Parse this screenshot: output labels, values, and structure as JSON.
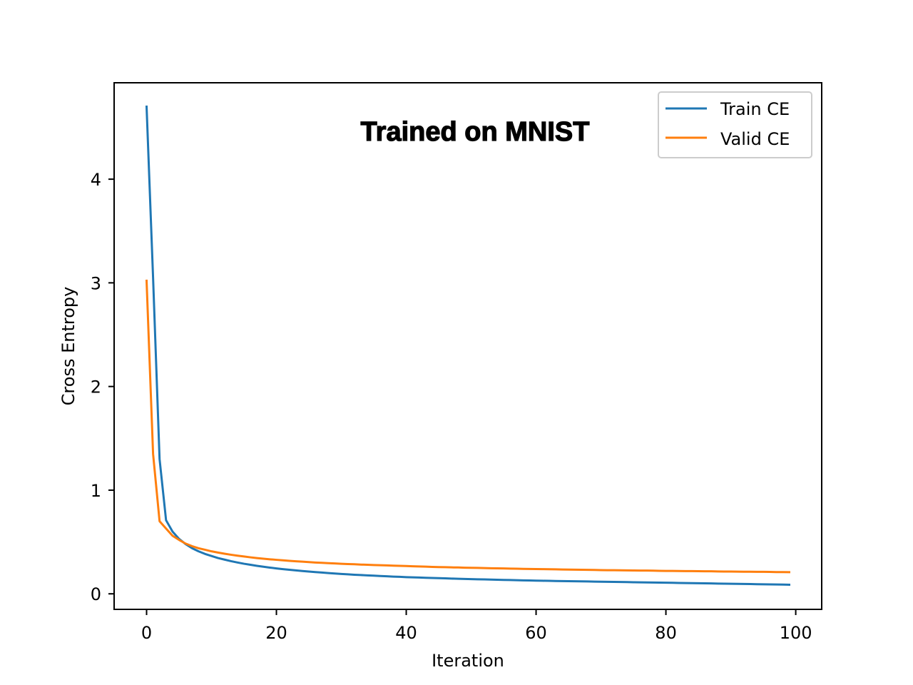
{
  "chart_data": {
    "type": "line",
    "title": "Trained on MNIST",
    "xlabel": "Iteration",
    "ylabel": "Cross Entropy",
    "xlim": [
      -5,
      104
    ],
    "ylim": [
      -0.15,
      4.93
    ],
    "xticks": [
      0,
      20,
      40,
      60,
      80,
      100
    ],
    "yticks": [
      0,
      1,
      2,
      3,
      4
    ],
    "grid": false,
    "legend_position": "top-right",
    "x": [
      0,
      1,
      2,
      3,
      4,
      5,
      6,
      7,
      8,
      9,
      10,
      11,
      12,
      13,
      14,
      15,
      16,
      17,
      18,
      19,
      20,
      21,
      22,
      23,
      24,
      25,
      26,
      27,
      28,
      29,
      30,
      31,
      32,
      33,
      34,
      35,
      36,
      37,
      38,
      39,
      40,
      41,
      42,
      43,
      44,
      45,
      46,
      47,
      48,
      49,
      50,
      51,
      52,
      53,
      54,
      55,
      56,
      57,
      58,
      59,
      60,
      61,
      62,
      63,
      64,
      65,
      66,
      67,
      68,
      69,
      70,
      71,
      72,
      73,
      74,
      75,
      76,
      77,
      78,
      79,
      80,
      81,
      82,
      83,
      84,
      85,
      86,
      87,
      88,
      89,
      90,
      91,
      92,
      93,
      94,
      95,
      96,
      97,
      98,
      99
    ],
    "series": [
      {
        "name": "Train CE",
        "color": "#1f77b4",
        "values": [
          4.7,
          3.05,
          1.3,
          0.71,
          0.6,
          0.53,
          0.48,
          0.44,
          0.41,
          0.385,
          0.365,
          0.345,
          0.33,
          0.315,
          0.302,
          0.29,
          0.28,
          0.27,
          0.261,
          0.253,
          0.245,
          0.238,
          0.232,
          0.226,
          0.22,
          0.215,
          0.21,
          0.205,
          0.2,
          0.196,
          0.192,
          0.188,
          0.184,
          0.181,
          0.178,
          0.175,
          0.172,
          0.169,
          0.166,
          0.164,
          0.161,
          0.159,
          0.157,
          0.155,
          0.153,
          0.151,
          0.149,
          0.147,
          0.145,
          0.143,
          0.142,
          0.14,
          0.139,
          0.137,
          0.136,
          0.134,
          0.133,
          0.131,
          0.13,
          0.129,
          0.127,
          0.126,
          0.125,
          0.124,
          0.123,
          0.122,
          0.121,
          0.12,
          0.119,
          0.118,
          0.117,
          0.116,
          0.115,
          0.114,
          0.113,
          0.112,
          0.111,
          0.11,
          0.109,
          0.108,
          0.107,
          0.106,
          0.105,
          0.104,
          0.103,
          0.102,
          0.101,
          0.1,
          0.099,
          0.098,
          0.097,
          0.096,
          0.095,
          0.094,
          0.093,
          0.092,
          0.091,
          0.09,
          0.089,
          0.088
        ]
      },
      {
        "name": "Valid CE",
        "color": "#ff7f0e",
        "values": [
          3.02,
          1.35,
          0.7,
          0.63,
          0.56,
          0.52,
          0.485,
          0.46,
          0.44,
          0.425,
          0.41,
          0.398,
          0.387,
          0.377,
          0.368,
          0.36,
          0.352,
          0.345,
          0.339,
          0.333,
          0.328,
          0.323,
          0.318,
          0.314,
          0.31,
          0.306,
          0.302,
          0.299,
          0.296,
          0.293,
          0.29,
          0.287,
          0.285,
          0.282,
          0.28,
          0.278,
          0.276,
          0.274,
          0.272,
          0.27,
          0.268,
          0.266,
          0.264,
          0.262,
          0.26,
          0.258,
          0.257,
          0.255,
          0.254,
          0.252,
          0.251,
          0.25,
          0.248,
          0.247,
          0.246,
          0.245,
          0.243,
          0.242,
          0.241,
          0.24,
          0.239,
          0.238,
          0.237,
          0.236,
          0.235,
          0.234,
          0.233,
          0.232,
          0.231,
          0.23,
          0.229,
          0.228,
          0.228,
          0.227,
          0.226,
          0.225,
          0.224,
          0.224,
          0.223,
          0.222,
          0.221,
          0.221,
          0.22,
          0.219,
          0.219,
          0.218,
          0.217,
          0.217,
          0.216,
          0.215,
          0.215,
          0.214,
          0.213,
          0.213,
          0.212,
          0.212,
          0.211,
          0.21,
          0.21,
          0.209
        ]
      }
    ]
  }
}
